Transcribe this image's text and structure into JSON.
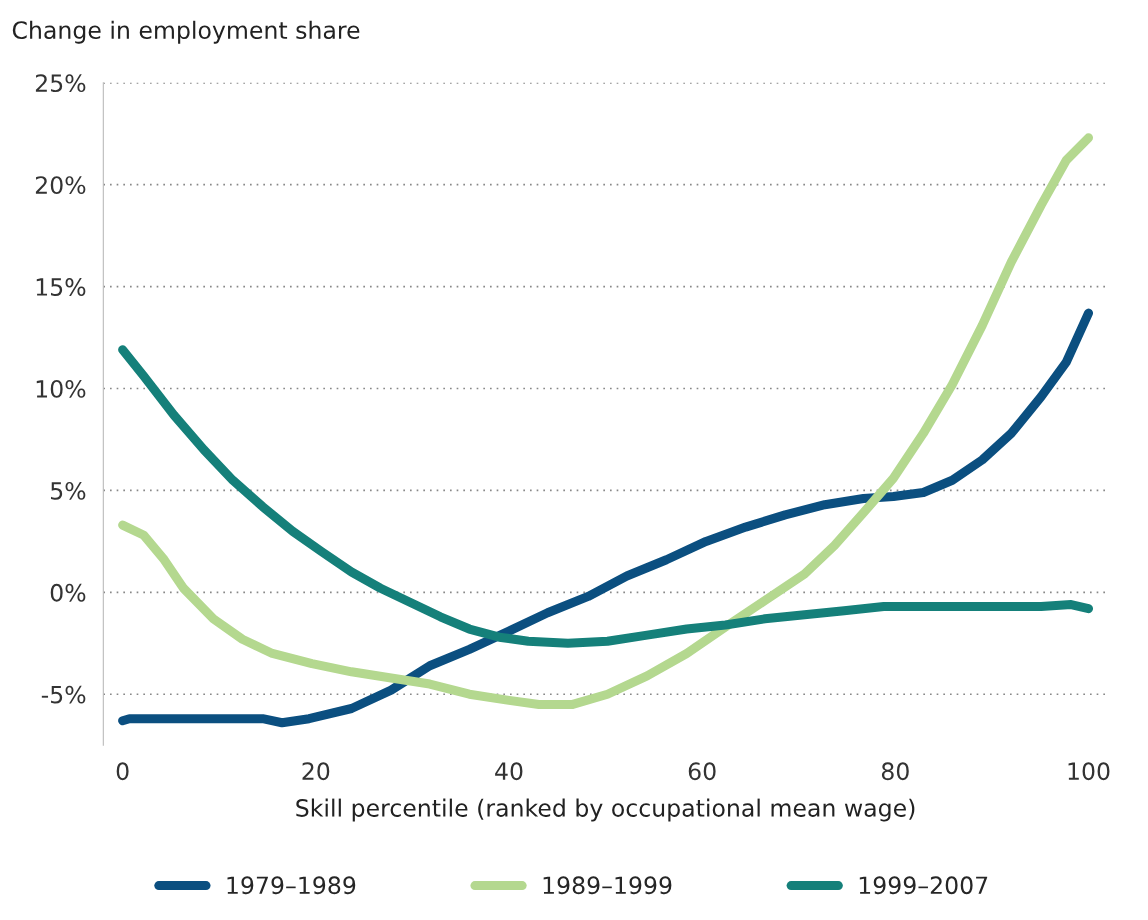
{
  "chart_data": {
    "type": "line",
    "ylabel": "Change in employment share",
    "xlabel": "Skill percentile (ranked by occupational mean wage)",
    "xlim": [
      -2,
      102
    ],
    "xticks": [
      0,
      20,
      40,
      60,
      80,
      100
    ],
    "ylim": [
      -7.5,
      25
    ],
    "yticks": [
      {
        "value": -5,
        "label": "-5%"
      },
      {
        "value": 0,
        "label": "0%"
      },
      {
        "value": 5,
        "label": "5%"
      },
      {
        "value": 10,
        "label": "10%"
      },
      {
        "value": 15,
        "label": "15%"
      },
      {
        "value": 20,
        "label": "20%"
      },
      {
        "value": 25,
        "label": "25%"
      }
    ],
    "grid": "y",
    "legend": "bottom",
    "line_style": "solid",
    "series": [
      {
        "name": "1979–1989",
        "color": "#0b4f80",
        "x": [
          0,
          0.7,
          14.5,
          16.5,
          19.3,
          23.7,
          27.8,
          31.8,
          35.9,
          40,
          44,
          48.2,
          52.2,
          56.3,
          60.4,
          64.5,
          68.6,
          72.7,
          76.7,
          79.8,
          82.9,
          85.9,
          89,
          92,
          95.1,
          97.7,
          100
        ],
        "values": [
          -6.3,
          -6.2,
          -6.2,
          -6.4,
          -6.2,
          -5.7,
          -4.8,
          -3.6,
          -2.8,
          -1.9,
          -1.0,
          -0.2,
          0.8,
          1.6,
          2.5,
          3.2,
          3.8,
          4.3,
          4.6,
          4.7,
          4.9,
          5.5,
          6.5,
          7.8,
          9.6,
          11.3,
          13.7
        ]
      },
      {
        "name": "1989–1999",
        "color": "#b4d88f",
        "x": [
          0,
          2.2,
          4.3,
          6.3,
          9.4,
          12.4,
          15.5,
          19.6,
          23.7,
          27.8,
          31.8,
          35.9,
          40,
          43.1,
          46.6,
          50.2,
          54.3,
          58.4,
          62.4,
          66.5,
          70.6,
          73.7,
          76.7,
          79.8,
          82.9,
          85.9,
          89,
          92,
          95.1,
          97.7,
          100
        ],
        "values": [
          3.3,
          2.8,
          1.6,
          0.2,
          -1.3,
          -2.3,
          -3.0,
          -3.5,
          -3.9,
          -4.2,
          -4.5,
          -5.0,
          -5.3,
          -5.5,
          -5.5,
          -5.0,
          -4.1,
          -3.0,
          -1.7,
          -0.4,
          0.9,
          2.3,
          3.9,
          5.6,
          7.8,
          10.2,
          13.1,
          16.2,
          19.0,
          21.2,
          22.3
        ]
      },
      {
        "name": "1999–2007",
        "color": "#15807a",
        "x": [
          0,
          2.2,
          5.3,
          8.4,
          11.4,
          14.5,
          17.6,
          20.6,
          23.7,
          26.7,
          29.8,
          32.9,
          35.9,
          39,
          42,
          46.1,
          50.2,
          54.3,
          58.4,
          62.4,
          66.5,
          70.6,
          74.7,
          78.8,
          85.9,
          95.1,
          98.2,
          100
        ],
        "values": [
          11.9,
          10.6,
          8.7,
          7.0,
          5.5,
          4.2,
          3.0,
          2.0,
          1.0,
          0.2,
          -0.5,
          -1.2,
          -1.8,
          -2.2,
          -2.4,
          -2.5,
          -2.4,
          -2.1,
          -1.8,
          -1.6,
          -1.3,
          -1.1,
          -0.9,
          -0.7,
          -0.7,
          -0.7,
          -0.6,
          -0.8
        ]
      }
    ]
  }
}
